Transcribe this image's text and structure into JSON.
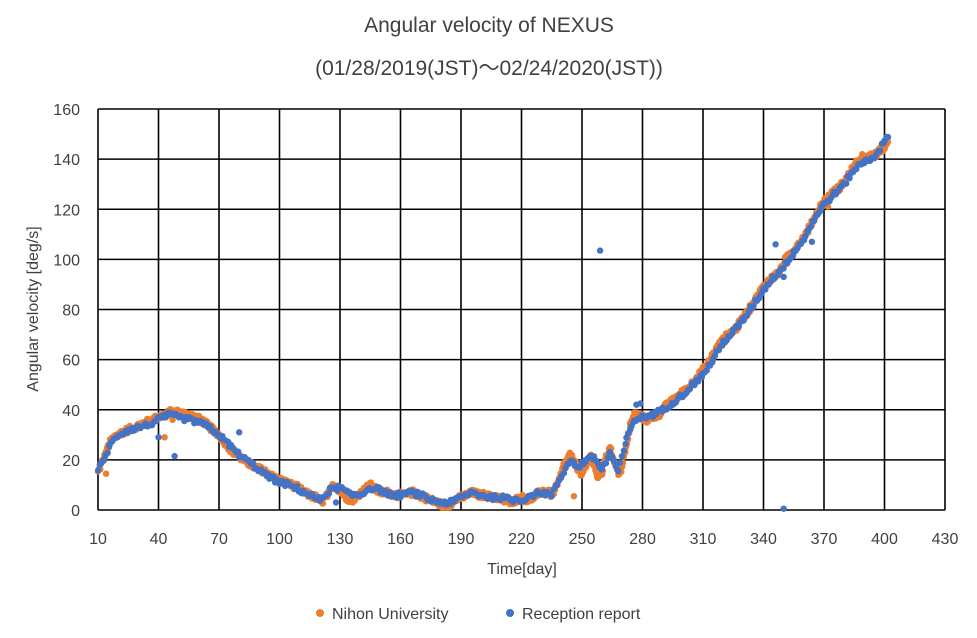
{
  "chart_data": {
    "type": "scatter",
    "title": "Angular velocity of NEXUS",
    "subtitle": "(01/28/2019(JST)～02/24/2020(JST))",
    "xlabel": "Time[day]",
    "ylabel": "Angular velocity [deg/s]",
    "xlim": [
      10,
      430
    ],
    "ylim": [
      0,
      160
    ],
    "x_ticks": [
      10,
      40,
      70,
      100,
      130,
      160,
      190,
      220,
      250,
      280,
      310,
      340,
      370,
      400,
      430
    ],
    "y_ticks": [
      0,
      20,
      40,
      60,
      80,
      100,
      120,
      140,
      160
    ],
    "grid": true,
    "legend_position": "bottom",
    "series": [
      {
        "name": "Nihon University",
        "color": "#ED7D31",
        "curve": [
          [
            10,
            15
          ],
          [
            12,
            19
          ],
          [
            14,
            23
          ],
          [
            16,
            27
          ],
          [
            18,
            29
          ],
          [
            20,
            30
          ],
          [
            22,
            31
          ],
          [
            25,
            32
          ],
          [
            28,
            33
          ],
          [
            31,
            34
          ],
          [
            34,
            35
          ],
          [
            37,
            36
          ],
          [
            40,
            37
          ],
          [
            43,
            38
          ],
          [
            46,
            39
          ],
          [
            49,
            39
          ],
          [
            52,
            38.5
          ],
          [
            55,
            38
          ],
          [
            58,
            37
          ],
          [
            61,
            36
          ],
          [
            64,
            34
          ],
          [
            67,
            32
          ],
          [
            70,
            30
          ],
          [
            73,
            27
          ],
          [
            76,
            24
          ],
          [
            79,
            22
          ],
          [
            82,
            20
          ],
          [
            85,
            18.5
          ],
          [
            88,
            17
          ],
          [
            91,
            16
          ],
          [
            94,
            15
          ],
          [
            97,
            13
          ],
          [
            100,
            12
          ],
          [
            103,
            11
          ],
          [
            106,
            10
          ],
          [
            109,
            9
          ],
          [
            112,
            7
          ],
          [
            115,
            6
          ],
          [
            118,
            5
          ],
          [
            121,
            3
          ],
          [
            124,
            6
          ],
          [
            127,
            10
          ],
          [
            130,
            8
          ],
          [
            133,
            5
          ],
          [
            136,
            4
          ],
          [
            139,
            6
          ],
          [
            142,
            8
          ],
          [
            145,
            10
          ],
          [
            148,
            8
          ],
          [
            151,
            7
          ],
          [
            154,
            7
          ],
          [
            157,
            6
          ],
          [
            160,
            6
          ],
          [
            163,
            6
          ],
          [
            166,
            7
          ],
          [
            169,
            6
          ],
          [
            172,
            5
          ],
          [
            175,
            4
          ],
          [
            178,
            3
          ],
          [
            181,
            2
          ],
          [
            184,
            2
          ],
          [
            187,
            4
          ],
          [
            190,
            5
          ],
          [
            193,
            6
          ],
          [
            196,
            7
          ],
          [
            199,
            6
          ],
          [
            202,
            6
          ],
          [
            205,
            5
          ],
          [
            208,
            5
          ],
          [
            211,
            4
          ],
          [
            214,
            3
          ],
          [
            217,
            4
          ],
          [
            220,
            5
          ],
          [
            223,
            4
          ],
          [
            226,
            5
          ],
          [
            229,
            7
          ],
          [
            232,
            8
          ],
          [
            235,
            6
          ],
          [
            238,
            10
          ],
          [
            241,
            18
          ],
          [
            244,
            22
          ],
          [
            247,
            18
          ],
          [
            250,
            14
          ],
          [
            252,
            17
          ],
          [
            254,
            22
          ],
          [
            256,
            18
          ],
          [
            258,
            12
          ],
          [
            260,
            15
          ],
          [
            262,
            22
          ],
          [
            264,
            24
          ],
          [
            266,
            20
          ],
          [
            268,
            15
          ],
          [
            270,
            17
          ],
          [
            272,
            26
          ],
          [
            274,
            34
          ],
          [
            276,
            38
          ],
          [
            278,
            38
          ],
          [
            280,
            37
          ],
          [
            282,
            36
          ],
          [
            285,
            37
          ],
          [
            288,
            38
          ],
          [
            291,
            41
          ],
          [
            294,
            43
          ],
          [
            297,
            45
          ],
          [
            300,
            47
          ],
          [
            303,
            49
          ],
          [
            306,
            52
          ],
          [
            309,
            55
          ],
          [
            312,
            58
          ],
          [
            315,
            62
          ],
          [
            318,
            66
          ],
          [
            321,
            69
          ],
          [
            324,
            71
          ],
          [
            327,
            73
          ],
          [
            330,
            77
          ],
          [
            333,
            80
          ],
          [
            336,
            84
          ],
          [
            339,
            88
          ],
          [
            342,
            91
          ],
          [
            345,
            93
          ],
          [
            348,
            95
          ],
          [
            351,
            100
          ],
          [
            354,
            103
          ],
          [
            357,
            106
          ],
          [
            360,
            109
          ],
          [
            363,
            113
          ],
          [
            366,
            118
          ],
          [
            369,
            122
          ],
          [
            372,
            125
          ],
          [
            375,
            127
          ],
          [
            378,
            129
          ],
          [
            381,
            132
          ],
          [
            384,
            136
          ],
          [
            387,
            139
          ],
          [
            390,
            140
          ],
          [
            393,
            141
          ],
          [
            396,
            142
          ],
          [
            399,
            144
          ],
          [
            402,
            148
          ]
        ],
        "points": [
          [
            14,
            14.5
          ],
          [
            43,
            29
          ],
          [
            47,
            36
          ],
          [
            68,
            31
          ],
          [
            246,
            5.5
          ],
          [
            372,
            121
          ],
          [
            389,
            142
          ]
        ]
      },
      {
        "name": "Reception report",
        "color": "#4472C4",
        "curve": [
          [
            10,
            16
          ],
          [
            13,
            20
          ],
          [
            16,
            26
          ],
          [
            20,
            30
          ],
          [
            25,
            32
          ],
          [
            30,
            33
          ],
          [
            35,
            34
          ],
          [
            40,
            36
          ],
          [
            45,
            38
          ],
          [
            50,
            37
          ],
          [
            55,
            36
          ],
          [
            60,
            35
          ],
          [
            65,
            33
          ],
          [
            70,
            30
          ],
          [
            75,
            26
          ],
          [
            80,
            22
          ],
          [
            85,
            19
          ],
          [
            90,
            16
          ],
          [
            95,
            13
          ],
          [
            100,
            11
          ],
          [
            105,
            10
          ],
          [
            110,
            8
          ],
          [
            115,
            6
          ],
          [
            120,
            4
          ],
          [
            125,
            8
          ],
          [
            130,
            9
          ],
          [
            135,
            6
          ],
          [
            140,
            6
          ],
          [
            145,
            9
          ],
          [
            150,
            8
          ],
          [
            155,
            6
          ],
          [
            160,
            6
          ],
          [
            165,
            7
          ],
          [
            170,
            6
          ],
          [
            175,
            4
          ],
          [
            180,
            3
          ],
          [
            185,
            3
          ],
          [
            190,
            5
          ],
          [
            195,
            7
          ],
          [
            200,
            6
          ],
          [
            205,
            5
          ],
          [
            210,
            5
          ],
          [
            215,
            4
          ],
          [
            220,
            4
          ],
          [
            225,
            6
          ],
          [
            230,
            7
          ],
          [
            235,
            6
          ],
          [
            240,
            14
          ],
          [
            244,
            20
          ],
          [
            248,
            17
          ],
          [
            252,
            20
          ],
          [
            256,
            21
          ],
          [
            260,
            16
          ],
          [
            264,
            23
          ],
          [
            268,
            15
          ],
          [
            272,
            28
          ],
          [
            276,
            36
          ],
          [
            280,
            37
          ],
          [
            285,
            38
          ],
          [
            290,
            40
          ],
          [
            295,
            43
          ],
          [
            300,
            46
          ],
          [
            305,
            50
          ],
          [
            310,
            54
          ],
          [
            315,
            60
          ],
          [
            320,
            67
          ],
          [
            325,
            71
          ],
          [
            330,
            76
          ],
          [
            335,
            82
          ],
          [
            340,
            88
          ],
          [
            345,
            93
          ],
          [
            350,
            97
          ],
          [
            355,
            103
          ],
          [
            360,
            108
          ],
          [
            365,
            116
          ],
          [
            370,
            122
          ],
          [
            375,
            126
          ],
          [
            380,
            130
          ],
          [
            385,
            136
          ],
          [
            390,
            139
          ],
          [
            395,
            141
          ],
          [
            400,
            147
          ],
          [
            402,
            149
          ]
        ],
        "points": [
          [
            40,
            29
          ],
          [
            48,
            21.5
          ],
          [
            80,
            31
          ],
          [
            128,
            3
          ],
          [
            259,
            103.5
          ],
          [
            277,
            42
          ],
          [
            279,
            42.5
          ],
          [
            346,
            106
          ],
          [
            350,
            0.5
          ],
          [
            350,
            93
          ],
          [
            364,
            107
          ]
        ]
      }
    ]
  }
}
